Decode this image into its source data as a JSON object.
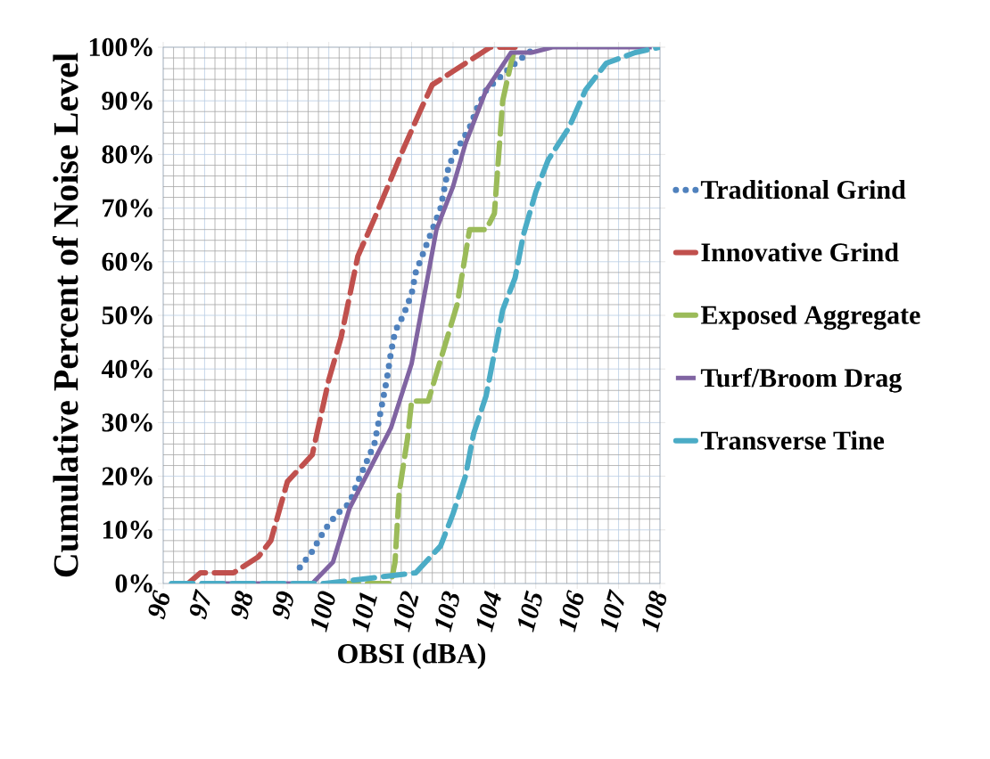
{
  "chart_data": {
    "type": "line",
    "xlabel": "OBSI (dBA)",
    "ylabel": "Cumulative Percent of Noise Level",
    "xlim": [
      96,
      108
    ],
    "xticks": [
      96,
      97,
      98,
      99,
      100,
      101,
      102,
      103,
      104,
      105,
      106,
      107,
      108
    ],
    "ylim": [
      0,
      100
    ],
    "yticks": [
      {
        "value": 0,
        "label": "0%"
      },
      {
        "value": 10,
        "label": "10%"
      },
      {
        "value": 20,
        "label": "20%"
      },
      {
        "value": 30,
        "label": "30%"
      },
      {
        "value": 40,
        "label": "40%"
      },
      {
        "value": 50,
        "label": "50%"
      },
      {
        "value": 60,
        "label": "60%"
      },
      {
        "value": 70,
        "label": "70%"
      },
      {
        "value": 80,
        "label": "80%"
      },
      {
        "value": 90,
        "label": "90%"
      },
      {
        "value": 100,
        "label": "100%"
      }
    ],
    "grid": true,
    "legend": "right",
    "marker": "none",
    "series": [
      {
        "name": "Traditional Grind",
        "color": "#4f81bd",
        "line_style": "dotted",
        "x": [
          99.3,
          99.6,
          99.9,
          100.2,
          100.5,
          100.7,
          101.1,
          101.2,
          101.3,
          101.4,
          101.5,
          101.6,
          101.8,
          102.0,
          102.1,
          102.3,
          102.5,
          102.7,
          102.8,
          102.9,
          103.1,
          103.4,
          103.6,
          103.8,
          104.5,
          105.0
        ],
        "values": [
          3,
          6,
          10,
          13,
          15,
          19,
          26,
          30,
          34,
          38,
          43,
          47,
          50,
          54,
          58,
          62,
          66,
          70,
          74,
          78,
          81,
          85,
          89,
          92,
          97,
          100
        ]
      },
      {
        "name": "Innovative Grind",
        "color": "#c0504d",
        "line_style": "dashed",
        "x": [
          96.6,
          96.9,
          97.7,
          98.3,
          98.6,
          99.0,
          99.6,
          100.0,
          100.3,
          100.7,
          101.1,
          101.8,
          102.2,
          102.5,
          103.3,
          103.9,
          104.5
        ],
        "values": [
          0,
          2,
          2,
          5,
          8,
          19,
          24,
          38,
          46,
          61,
          68,
          81,
          88,
          93,
          97,
          100,
          100
        ]
      },
      {
        "name": "Exposed Aggregate",
        "color": "#9bbb59",
        "line_style": "dashed",
        "x": [
          100.2,
          101.5,
          101.6,
          101.7,
          101.9,
          102.0,
          102.4,
          103.1,
          103.4,
          103.8,
          104.0,
          104.2,
          104.4,
          104.5
        ],
        "values": [
          0,
          0,
          4,
          17,
          27,
          34,
          34,
          52,
          66,
          66,
          69,
          90,
          97,
          100
        ]
      },
      {
        "name": "Turf/Broom Drag",
        "color": "#8064a2",
        "line_style": "solid",
        "x": [
          96.9,
          99.6,
          100.1,
          100.5,
          101.5,
          102.0,
          102.6,
          103.0,
          103.3,
          103.8,
          104.4,
          104.9,
          105.4,
          107.8
        ],
        "values": [
          0,
          0,
          4,
          14,
          29,
          41,
          66,
          74,
          82,
          92,
          99,
          99,
          100,
          100
        ]
      },
      {
        "name": "Transverse Tine",
        "color": "#4bacc6",
        "line_style": "dashed",
        "x": [
          96.2,
          99.9,
          102.1,
          102.7,
          103.0,
          103.3,
          103.5,
          103.8,
          104.0,
          104.2,
          104.5,
          104.7,
          105.0,
          105.3,
          105.8,
          106.2,
          106.7,
          107.4,
          108.0
        ],
        "values": [
          0,
          0,
          2,
          7,
          13,
          20,
          28,
          35,
          43,
          51,
          57,
          65,
          73,
          79,
          85,
          92,
          97,
          99,
          100
        ]
      }
    ]
  }
}
